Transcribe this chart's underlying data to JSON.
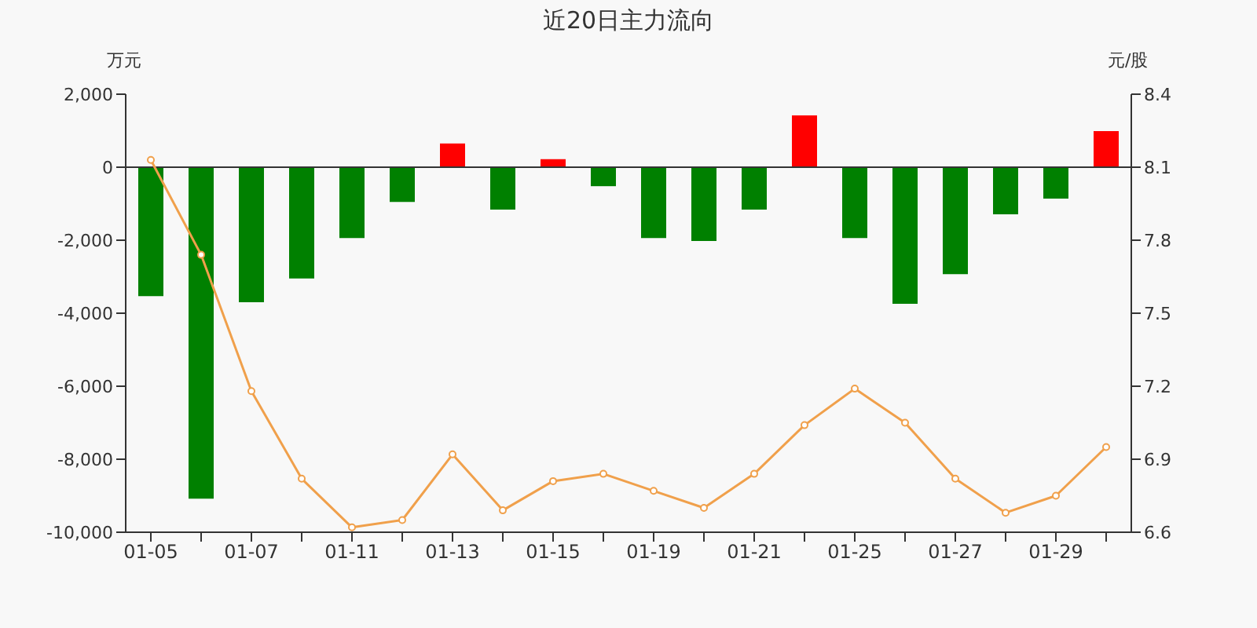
{
  "chart_data": {
    "type": "bar",
    "title": "近20日主力流向",
    "ylabel": "万元",
    "y2label": "元/股",
    "categories": [
      "01-05",
      null,
      "01-07",
      null,
      "01-11",
      null,
      "01-13",
      null,
      "01-15",
      null,
      "01-19",
      null,
      "01-21",
      null,
      "01-25",
      null,
      "01-27",
      null,
      "01-29",
      null
    ],
    "series": [
      {
        "values": [
          -3530,
          -9080,
          -3700,
          -3050,
          -1940,
          -950,
          650,
          -1160,
          220,
          -520,
          -1940,
          -2020,
          -1160,
          1420,
          -1940,
          -3740,
          -2930,
          -1290,
          -860,
          990
        ],
        "colors": [
          "#008000",
          "#008000",
          "#008000",
          "#008000",
          "#008000",
          "#008000",
          "#ff0000",
          "#008000",
          "#ff0000",
          "#008000",
          "#008000",
          "#008000",
          "#008000",
          "#ff0000",
          "#008000",
          "#008000",
          "#008000",
          "#008000",
          "#008000",
          "#ff0000"
        ]
      },
      {
        "type": "line",
        "axis": "y2",
        "color": "#f0a04b",
        "values": [
          8.13,
          7.74,
          7.18,
          6.82,
          6.62,
          6.65,
          6.92,
          6.69,
          6.81,
          6.84,
          6.77,
          6.7,
          6.84,
          7.04,
          7.19,
          7.05,
          6.82,
          6.68,
          6.75,
          6.95
        ]
      }
    ],
    "ylim": [
      -10000,
      2000
    ],
    "yticks": [
      {
        "value": -10000,
        "label": "-10,000"
      },
      {
        "value": -8000,
        "label": "-8,000"
      },
      {
        "value": -6000,
        "label": "-6,000"
      },
      {
        "value": -4000,
        "label": "-4,000"
      },
      {
        "value": -2000,
        "label": "-2,000"
      },
      0,
      {
        "value": 2000,
        "label": "2,000"
      }
    ],
    "y2lim": [
      6.6,
      8.4
    ],
    "y2ticks": [
      6.6,
      6.9,
      7.2,
      7.5,
      7.8,
      8.1,
      8.4
    ],
    "ref_lines": [
      {
        "axis": "y",
        "value": 0,
        "color": "#333333"
      }
    ],
    "grid": false,
    "legend": false,
    "marker": "circle",
    "line_style": "solid"
  }
}
